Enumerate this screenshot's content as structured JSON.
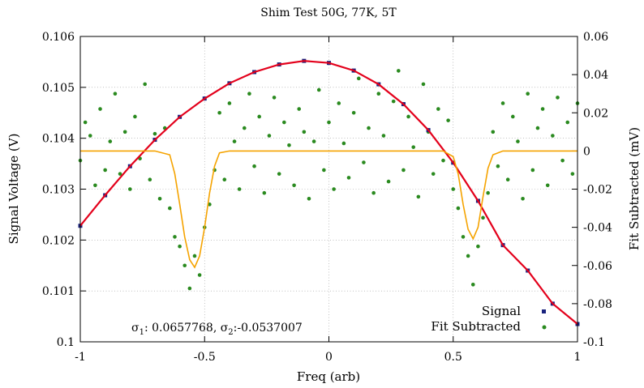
{
  "chart_data": {
    "type": "scatter",
    "title": "Shim Test 50G, 77K, 5T",
    "xlabel": "Freq (arb)",
    "ylabel": "Signal Voltage (V)",
    "y2label": "Fit Subtracted (mV)",
    "xlim": [
      -1,
      1
    ],
    "ylim": [
      0.1,
      0.106
    ],
    "y2lim": [
      -0.1,
      0.06
    ],
    "xticks": [
      "-1",
      "-0.5",
      "0",
      "0.5",
      "1"
    ],
    "yticks": [
      "0.1",
      "0.101",
      "0.102",
      "0.103",
      "0.104",
      "0.105",
      "0.106"
    ],
    "y2ticks": [
      "-0.1",
      "-0.08",
      "-0.06",
      "-0.04",
      "-0.02",
      "0",
      "0.02",
      "0.04",
      "0.06"
    ],
    "grid": true,
    "legend_position": "bottom-right",
    "annotation": {
      "s1_symbol": "σ",
      "s1_sub": "1",
      "s1_value": ": 0.0657768, ",
      "s2_symbol": "σ",
      "s2_sub": "2",
      "s2_value": ":-0.0537007"
    },
    "series": [
      {
        "name": "Signal",
        "kind": "points",
        "axis": "y1",
        "color": "#1a237e",
        "x": [
          -1.0,
          -0.9,
          -0.8,
          -0.7,
          -0.6,
          -0.5,
          -0.4,
          -0.3,
          -0.2,
          -0.1,
          0.0,
          0.1,
          0.2,
          0.3,
          0.4,
          0.5,
          0.6,
          0.7,
          0.8,
          0.9,
          1.0
        ],
        "y": [
          0.10228,
          0.10288,
          0.10345,
          0.10397,
          0.10442,
          0.10478,
          0.10508,
          0.1053,
          0.10545,
          0.10552,
          0.10548,
          0.10533,
          0.10506,
          0.10467,
          0.10416,
          0.10352,
          0.10277,
          0.1019,
          0.1014,
          0.10075,
          0.10035
        ]
      },
      {
        "name": "",
        "kind": "line",
        "axis": "y1",
        "color": "#e3001b",
        "x": [
          -1.0,
          -0.9,
          -0.8,
          -0.7,
          -0.6,
          -0.5,
          -0.4,
          -0.3,
          -0.2,
          -0.1,
          0.0,
          0.1,
          0.2,
          0.3,
          0.4,
          0.5,
          0.6,
          0.7,
          0.8,
          0.9,
          1.0
        ],
        "y": [
          0.10228,
          0.10288,
          0.10345,
          0.10397,
          0.10442,
          0.10478,
          0.10508,
          0.1053,
          0.10545,
          0.10552,
          0.10548,
          0.10533,
          0.10506,
          0.10467,
          0.10416,
          0.10352,
          0.10277,
          0.1019,
          0.1014,
          0.10075,
          0.10035
        ]
      },
      {
        "name": "Fit Subtracted",
        "kind": "points",
        "axis": "y2",
        "color": "#2a8a1f",
        "x": [
          -1.0,
          -0.98,
          -0.96,
          -0.94,
          -0.92,
          -0.9,
          -0.88,
          -0.86,
          -0.84,
          -0.82,
          -0.8,
          -0.78,
          -0.76,
          -0.74,
          -0.72,
          -0.7,
          -0.68,
          -0.66,
          -0.64,
          -0.62,
          -0.6,
          -0.58,
          -0.56,
          -0.54,
          -0.52,
          -0.5,
          -0.48,
          -0.46,
          -0.44,
          -0.42,
          -0.4,
          -0.38,
          -0.36,
          -0.34,
          -0.32,
          -0.3,
          -0.28,
          -0.26,
          -0.24,
          -0.22,
          -0.2,
          -0.18,
          -0.16,
          -0.14,
          -0.12,
          -0.1,
          -0.08,
          -0.06,
          -0.04,
          -0.02,
          0.0,
          0.02,
          0.04,
          0.06,
          0.08,
          0.1,
          0.12,
          0.14,
          0.16,
          0.18,
          0.2,
          0.22,
          0.24,
          0.26,
          0.28,
          0.3,
          0.32,
          0.34,
          0.36,
          0.38,
          0.4,
          0.42,
          0.44,
          0.46,
          0.48,
          0.5,
          0.52,
          0.54,
          0.56,
          0.58,
          0.6,
          0.62,
          0.64,
          0.66,
          0.68,
          0.7,
          0.72,
          0.74,
          0.76,
          0.78,
          0.8,
          0.82,
          0.84,
          0.86,
          0.88,
          0.9,
          0.92,
          0.94,
          0.96,
          0.98,
          1.0
        ],
        "y": [
          -0.005,
          0.015,
          0.008,
          -0.018,
          0.022,
          -0.01,
          0.005,
          0.03,
          -0.012,
          0.01,
          -0.02,
          0.018,
          -0.004,
          0.035,
          -0.015,
          0.009,
          -0.025,
          0.012,
          -0.03,
          -0.045,
          -0.05,
          -0.06,
          -0.072,
          -0.055,
          -0.065,
          -0.04,
          -0.028,
          -0.01,
          0.02,
          -0.015,
          0.025,
          0.005,
          -0.02,
          0.012,
          0.03,
          -0.008,
          0.018,
          -0.022,
          0.008,
          0.028,
          -0.012,
          0.015,
          0.003,
          -0.018,
          0.022,
          0.01,
          -0.025,
          0.005,
          0.032,
          -0.01,
          0.015,
          -0.02,
          0.025,
          0.004,
          -0.014,
          0.02,
          0.038,
          -0.006,
          0.012,
          -0.022,
          0.03,
          0.008,
          -0.016,
          0.026,
          0.042,
          -0.01,
          0.018,
          0.002,
          -0.024,
          0.035,
          0.01,
          -0.012,
          0.022,
          -0.005,
          0.016,
          -0.02,
          -0.03,
          -0.045,
          -0.055,
          -0.07,
          -0.05,
          -0.035,
          -0.022,
          0.01,
          -0.008,
          0.025,
          -0.015,
          0.018,
          0.005,
          -0.025,
          0.03,
          -0.01,
          0.012,
          0.022,
          -0.018,
          0.008,
          0.028,
          -0.005,
          0.015,
          -0.012,
          0.025
        ]
      },
      {
        "name": "",
        "kind": "line",
        "axis": "y2",
        "color": "#f5a300",
        "x": [
          -1.0,
          -0.9,
          -0.8,
          -0.7,
          -0.64,
          -0.62,
          -0.6,
          -0.58,
          -0.56,
          -0.54,
          -0.52,
          -0.5,
          -0.48,
          -0.46,
          -0.44,
          -0.4,
          -0.3,
          -0.2,
          -0.1,
          0.0,
          0.1,
          0.2,
          0.3,
          0.4,
          0.46,
          0.5,
          0.52,
          0.54,
          0.56,
          0.58,
          0.6,
          0.62,
          0.64,
          0.66,
          0.7,
          0.8,
          0.9,
          1.0
        ],
        "y": [
          0.0,
          0.0,
          0.0,
          0.0,
          -0.002,
          -0.012,
          -0.028,
          -0.045,
          -0.057,
          -0.061,
          -0.055,
          -0.04,
          -0.022,
          -0.008,
          -0.001,
          0.0,
          0.0,
          0.0,
          0.0,
          0.0,
          0.0,
          0.0,
          0.0,
          0.0,
          0.0,
          -0.003,
          -0.012,
          -0.028,
          -0.041,
          -0.046,
          -0.04,
          -0.024,
          -0.009,
          -0.002,
          0.0,
          0.0,
          0.0,
          0.0
        ]
      }
    ]
  }
}
